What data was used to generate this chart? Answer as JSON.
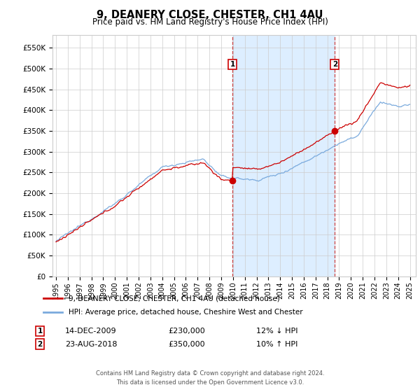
{
  "title": "9, DEANERY CLOSE, CHESTER, CH1 4AU",
  "subtitle": "Price paid vs. HM Land Registry's House Price Index (HPI)",
  "ylabel_ticks": [
    "£0",
    "£50K",
    "£100K",
    "£150K",
    "£200K",
    "£250K",
    "£300K",
    "£350K",
    "£400K",
    "£450K",
    "£500K",
    "£550K"
  ],
  "ytick_values": [
    0,
    50000,
    100000,
    150000,
    200000,
    250000,
    300000,
    350000,
    400000,
    450000,
    500000,
    550000
  ],
  "ylim": [
    0,
    580000
  ],
  "xlim_start": 1994.7,
  "xlim_end": 2025.5,
  "xlabel_years": [
    "1995",
    "1996",
    "1997",
    "1998",
    "1999",
    "2000",
    "2001",
    "2002",
    "2003",
    "2004",
    "2005",
    "2006",
    "2007",
    "2008",
    "2009",
    "2010",
    "2011",
    "2012",
    "2013",
    "2014",
    "2015",
    "2016",
    "2017",
    "2018",
    "2019",
    "2020",
    "2021",
    "2022",
    "2023",
    "2024",
    "2025"
  ],
  "transaction1_x": 2009.95,
  "transaction1_y": 230000,
  "transaction1_label": "1",
  "transaction1_date": "14-DEC-2009",
  "transaction1_price": "£230,000",
  "transaction1_hpi": "12% ↓ HPI",
  "transaction2_x": 2018.64,
  "transaction2_y": 350000,
  "transaction2_label": "2",
  "transaction2_date": "23-AUG-2018",
  "transaction2_price": "£350,000",
  "transaction2_hpi": "10% ↑ HPI",
  "legend_label1": "9, DEANERY CLOSE, CHESTER, CH1 4AU (detached house)",
  "legend_label2": "HPI: Average price, detached house, Cheshire West and Chester",
  "footer": "Contains HM Land Registry data © Crown copyright and database right 2024.\nThis data is licensed under the Open Government Licence v3.0.",
  "line_color_red": "#cc0000",
  "line_color_blue": "#7aaadd",
  "shading_color": "#ddeeff",
  "background_color": "#ffffff",
  "grid_color": "#cccccc"
}
